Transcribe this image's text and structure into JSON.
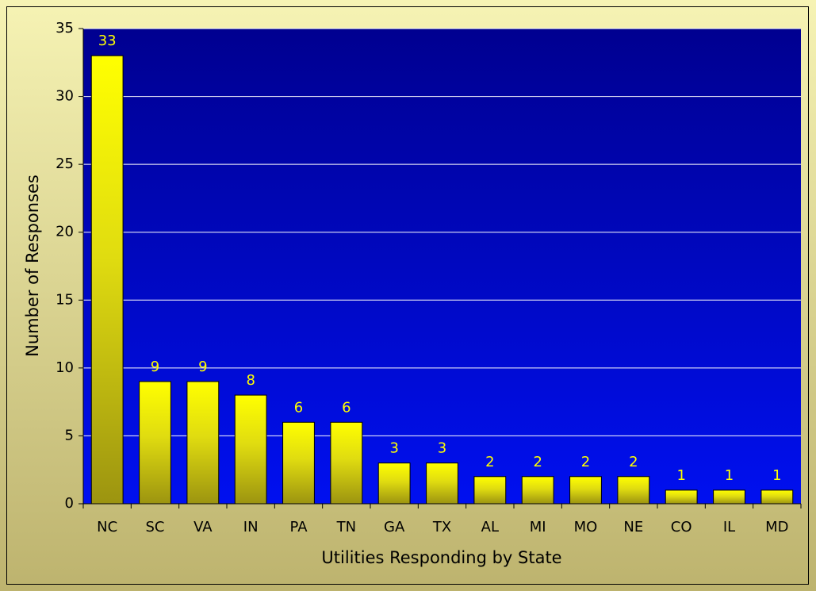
{
  "chart_data": {
    "type": "bar",
    "x_label": "Utilities Responding by State",
    "y_label": "Number of Responses",
    "categories": [
      "NC",
      "SC",
      "VA",
      "IN",
      "PA",
      "TN",
      "GA",
      "TX",
      "AL",
      "MI",
      "MO",
      "NE",
      "CO",
      "IL",
      "MD"
    ],
    "values": [
      33,
      9,
      9,
      8,
      6,
      6,
      3,
      3,
      2,
      2,
      2,
      2,
      1,
      1,
      1
    ],
    "color": "#ffff00",
    "ylim": [
      0,
      35
    ],
    "yticks": [
      0,
      5,
      10,
      15,
      20,
      25,
      30,
      35
    ],
    "grid": true,
    "data_labels": true
  }
}
